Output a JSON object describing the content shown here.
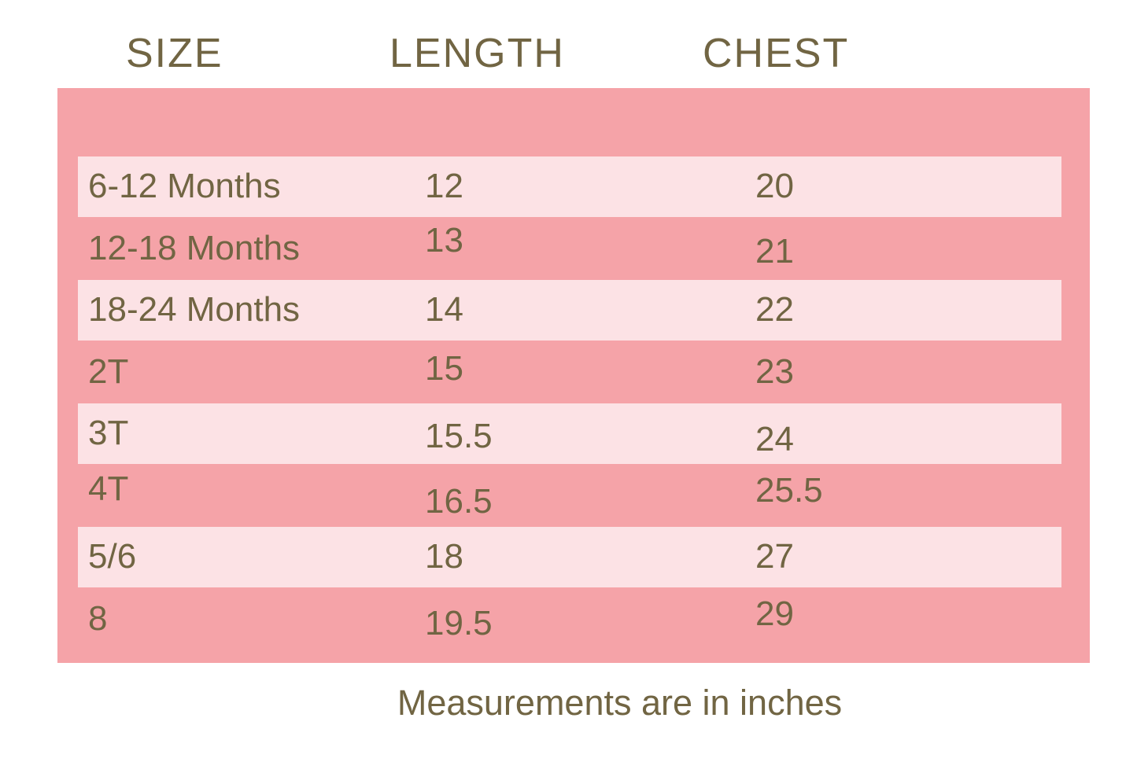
{
  "colors": {
    "page_background": "#ffffff",
    "panel_pink": "#f5a3a8",
    "row_band_pink": "#fce2e5",
    "text_olive": "#716543"
  },
  "header": {
    "columns": [
      "SIZE",
      "LENGTH",
      "CHEST"
    ]
  },
  "rows": [
    {
      "size": "6-12 Months",
      "length": "12",
      "chest": "20"
    },
    {
      "size": "12-18 Months",
      "length": "13",
      "chest": "21"
    },
    {
      "size": "18-24 Months",
      "length": "14",
      "chest": "22"
    },
    {
      "size": "2T",
      "length": "15",
      "chest": "23"
    },
    {
      "size": "3T",
      "length": "15.5",
      "chest": "24"
    },
    {
      "size": "4T",
      "length": "16.5",
      "chest": "25.5"
    },
    {
      "size": "5/6",
      "length": "18",
      "chest": "27"
    },
    {
      "size": "8",
      "length": "19.5",
      "chest": "29"
    }
  ],
  "footer": {
    "note": "Measurements are in inches"
  },
  "chart_data": {
    "type": "table",
    "title": "Children's clothing size chart",
    "columns": [
      "SIZE",
      "LENGTH",
      "CHEST"
    ],
    "rows": [
      [
        "6-12 Months",
        12,
        20
      ],
      [
        "12-18 Months",
        13,
        21
      ],
      [
        "18-24 Months",
        14,
        22
      ],
      [
        "2T",
        15,
        23
      ],
      [
        "3T",
        15.5,
        24
      ],
      [
        "4T",
        16.5,
        25.5
      ],
      [
        "5/6",
        18,
        27
      ],
      [
        "8",
        19.5,
        29
      ]
    ],
    "units": "inches",
    "note": "Measurements are in inches",
    "layout": {
      "striped_rows": true,
      "stripe_pattern": "odd rows light pink band on darker pink panel"
    }
  }
}
